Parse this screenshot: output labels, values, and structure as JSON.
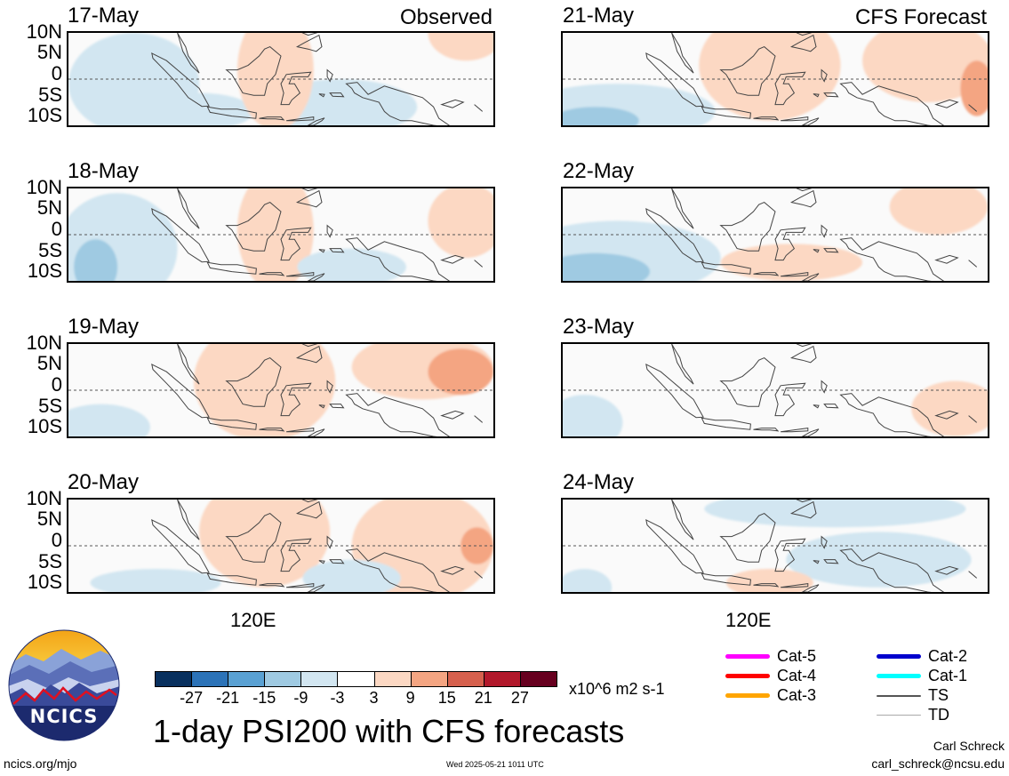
{
  "panels": {
    "left": [
      {
        "date": "17-May",
        "tag": "Observed",
        "blobs": [
          {
            "lon": 92,
            "lat": -1,
            "rx": 12,
            "ry": 11,
            "v": -3
          },
          {
            "lon": 130,
            "lat": -6,
            "rx": 14,
            "ry": 6,
            "v": -3
          },
          {
            "lon": 104,
            "lat": -7,
            "rx": 10,
            "ry": 4,
            "v": -3
          },
          {
            "lon": 118,
            "lat": 2,
            "rx": 7,
            "ry": 13,
            "v": 3
          },
          {
            "lon": 153,
            "lat": 10,
            "rx": 7,
            "ry": 6,
            "v": 3
          }
        ]
      },
      {
        "date": "18-May",
        "tag": "",
        "blobs": [
          {
            "lon": 89,
            "lat": -3,
            "rx": 11,
            "ry": 12,
            "v": -3
          },
          {
            "lon": 85,
            "lat": -7,
            "rx": 4,
            "ry": 6,
            "v": -9
          },
          {
            "lon": 118,
            "lat": 1,
            "rx": 7,
            "ry": 13,
            "v": 3
          },
          {
            "lon": 132,
            "lat": -7,
            "rx": 10,
            "ry": 4,
            "v": -3
          },
          {
            "lon": 153,
            "lat": 3,
            "rx": 7,
            "ry": 8,
            "v": 3
          }
        ]
      },
      {
        "date": "19-May",
        "tag": "",
        "blobs": [
          {
            "lon": 86,
            "lat": -8,
            "rx": 9,
            "ry": 5,
            "v": -3
          },
          {
            "lon": 116,
            "lat": 2,
            "rx": 13,
            "ry": 13,
            "v": 3
          },
          {
            "lon": 145,
            "lat": 5,
            "rx": 13,
            "ry": 7,
            "v": 3
          },
          {
            "lon": 152,
            "lat": 4,
            "rx": 6,
            "ry": 5,
            "v": 9
          }
        ]
      },
      {
        "date": "20-May",
        "tag": "",
        "blobs": [
          {
            "lon": 116,
            "lat": 3,
            "rx": 12,
            "ry": 12,
            "v": 3
          },
          {
            "lon": 145,
            "lat": 0,
            "rx": 13,
            "ry": 12,
            "v": 3
          },
          {
            "lon": 132,
            "lat": -7,
            "rx": 9,
            "ry": 4,
            "v": -3
          },
          {
            "lon": 96,
            "lat": -8,
            "rx": 12,
            "ry": 3,
            "v": -3
          },
          {
            "lon": 155,
            "lat": 0,
            "rx": 3,
            "ry": 4,
            "v": 9
          }
        ]
      }
    ],
    "right": [
      {
        "date": "21-May",
        "tag": "CFS Forecast",
        "blobs": [
          {
            "lon": 90,
            "lat": -7,
            "rx": 18,
            "ry": 6,
            "v": -3
          },
          {
            "lon": 86,
            "lat": -9,
            "rx": 8,
            "ry": 3,
            "v": -9
          },
          {
            "lon": 118,
            "lat": 3,
            "rx": 13,
            "ry": 12,
            "v": 3
          },
          {
            "lon": 147,
            "lat": 4,
            "rx": 12,
            "ry": 9,
            "v": 3
          },
          {
            "lon": 156,
            "lat": -2,
            "rx": 3,
            "ry": 6,
            "v": 9
          }
        ]
      },
      {
        "date": "22-May",
        "tag": "",
        "blobs": [
          {
            "lon": 90,
            "lat": -5,
            "rx": 19,
            "ry": 8,
            "v": -3
          },
          {
            "lon": 86,
            "lat": -8,
            "rx": 10,
            "ry": 4,
            "v": -9
          },
          {
            "lon": 122,
            "lat": -6,
            "rx": 13,
            "ry": 4,
            "v": 3
          },
          {
            "lon": 149,
            "lat": 6,
            "rx": 9,
            "ry": 6,
            "v": 3
          }
        ]
      },
      {
        "date": "23-May",
        "tag": "",
        "blobs": [
          {
            "lon": 84,
            "lat": -7,
            "rx": 7,
            "ry": 6,
            "v": -3
          },
          {
            "lon": 152,
            "lat": -4,
            "rx": 8,
            "ry": 6,
            "v": 3
          }
        ]
      },
      {
        "date": "24-May",
        "tag": "",
        "blobs": [
          {
            "lon": 130,
            "lat": 8,
            "rx": 24,
            "ry": 4,
            "v": -3
          },
          {
            "lon": 138,
            "lat": -3,
            "rx": 17,
            "ry": 6,
            "v": -3
          },
          {
            "lon": 118,
            "lat": -8,
            "rx": 8,
            "ry": 3,
            "v": 3
          },
          {
            "lon": 84,
            "lat": -9,
            "rx": 5,
            "ry": 4,
            "v": -3
          }
        ]
      }
    ]
  },
  "axis": {
    "lat_labels": [
      "10N",
      "5N",
      "0",
      "5S",
      "10S"
    ],
    "lon_label": "120E",
    "lon_range": [
      80,
      158
    ],
    "lat_range": [
      -10,
      10
    ]
  },
  "colorbar": {
    "colors": [
      "#08305e",
      "#2c73b8",
      "#5aa1d3",
      "#9fcae2",
      "#d2e6f1",
      "#ffffff",
      "#fcd8c3",
      "#f4a582",
      "#d6604d",
      "#b2182b",
      "#67001f"
    ],
    "ticks": [
      "-27",
      "-21",
      "-15",
      "-9",
      "-3",
      "3",
      "9",
      "15",
      "21",
      "27"
    ],
    "units": "x10^6 m2 s-1"
  },
  "title": "1-day PSI200 with CFS forecasts",
  "logo": {
    "text": "NCICS"
  },
  "legend": [
    {
      "label": "Cat-5",
      "color": "#ff00ff"
    },
    {
      "label": "Cat-4",
      "color": "#ff0000"
    },
    {
      "label": "Cat-3",
      "color": "#ffa500"
    },
    {
      "label": "Cat-2",
      "color": "#0000cd"
    },
    {
      "label": "Cat-1",
      "color": "#00ffff"
    },
    {
      "label": "TS",
      "color": "#555555"
    },
    {
      "label": "TD",
      "color": "#aaaaaa"
    }
  ],
  "footer": {
    "site": "ncics.org/mjo",
    "timestamp": "Wed 2025-05-21 1011 UTC",
    "author": "Carl Schreck",
    "email": "carl_schreck@ncsu.edu"
  }
}
